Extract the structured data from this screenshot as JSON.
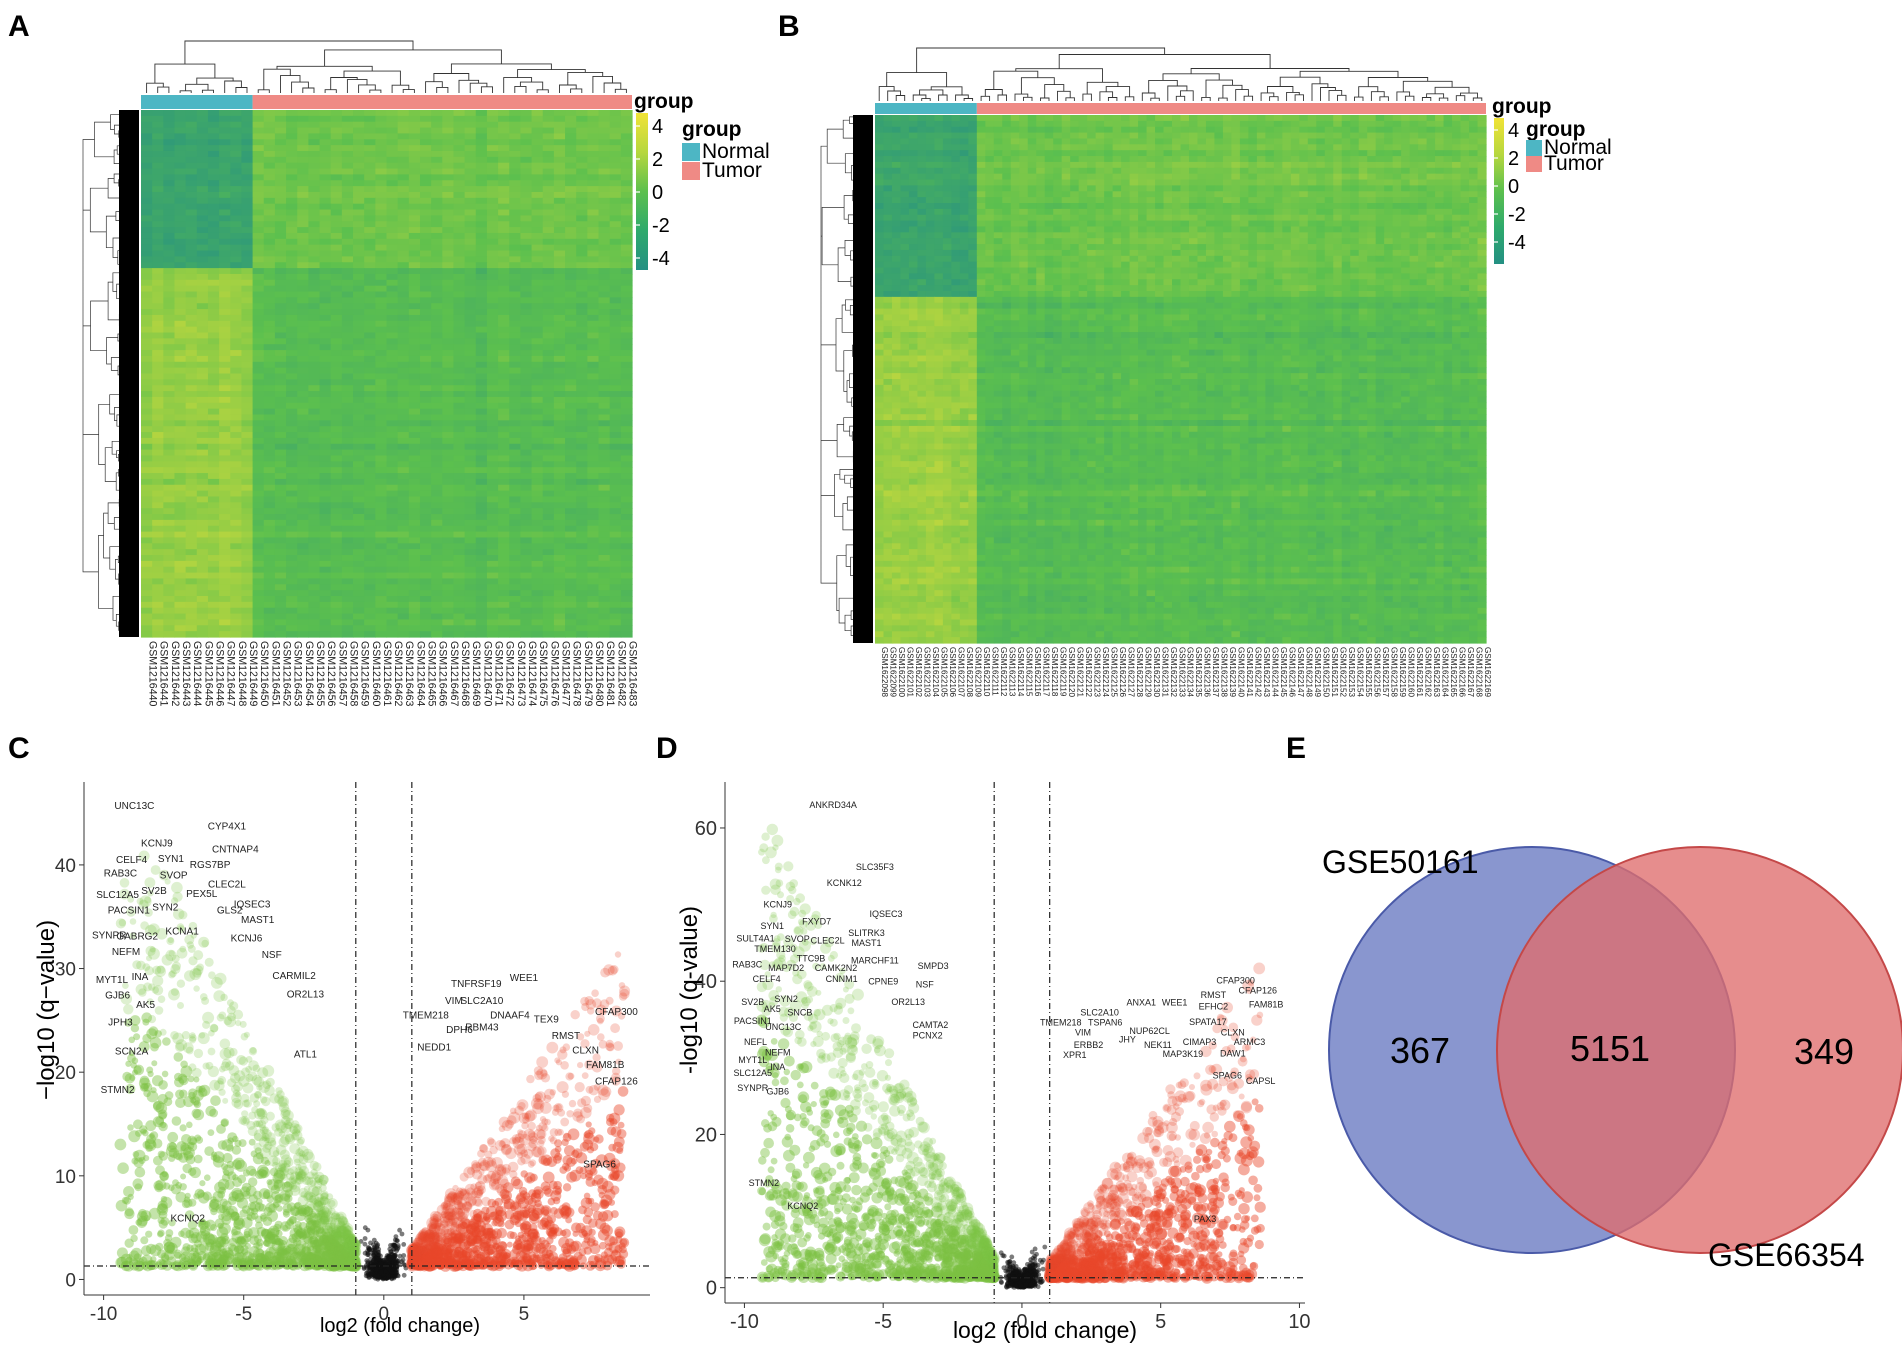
{
  "panel_labels": {
    "a": "A",
    "b": "B",
    "c": "C",
    "d": "D",
    "e": "E"
  },
  "colors": {
    "normal": "#4db6c4",
    "tumor": "#ef8a85",
    "heat_low": "#279584",
    "heat_mid": "#5cc04e",
    "heat_high": "#f1e336",
    "down": "#7cc242",
    "up": "#e8462a",
    "ns": "#111111",
    "venn_left": "#6f7fc4",
    "venn_right": "#df6d6d",
    "venn_overlap": "#a74c6c"
  },
  "chart_data": [
    {
      "panel": "A",
      "type": "heatmap",
      "legend": {
        "title": "group",
        "entries": [
          {
            "name": "Normal"
          },
          {
            "name": "Tumor"
          }
        ]
      },
      "annotation_label": "group",
      "colorbar": {
        "ticks": [
          "4",
          "2",
          "0",
          "-2",
          "-4"
        ],
        "range": [
          -4,
          4
        ]
      },
      "n_normal_samples": 10,
      "n_tumor_samples": 34,
      "samples": [
        "GSM1216440",
        "GSM1216441",
        "GSM1216442",
        "GSM1216443",
        "GSM1216444",
        "GSM1216445",
        "GSM1216446",
        "GSM1216447",
        "GSM1216448",
        "GSM1216449",
        "GSM1216450",
        "GSM1216451",
        "GSM1216452",
        "GSM1216453",
        "GSM1216454",
        "GSM1216455",
        "GSM1216456",
        "GSM1216457",
        "GSM1216458",
        "GSM1216459",
        "GSM1216460",
        "GSM1216461",
        "GSM1216462",
        "GSM1216463",
        "GSM1216464",
        "GSM1216465",
        "GSM1216466",
        "GSM1216467",
        "GSM1216468",
        "GSM1216469",
        "GSM1216470",
        "GSM1216471",
        "GSM1216472",
        "GSM1216473",
        "GSM1216474",
        "GSM1216475",
        "GSM1216476",
        "GSM1216477",
        "GSM1216478",
        "GSM1216479",
        "GSM1216480",
        "GSM1216481",
        "GSM1216482",
        "GSM1216483"
      ]
    },
    {
      "panel": "B",
      "type": "heatmap",
      "legend": {
        "title": "group",
        "entries": [
          {
            "name": "Normal"
          },
          {
            "name": "Tumor"
          }
        ]
      },
      "annotation_label": "group",
      "colorbar": {
        "ticks": [
          "4",
          "2",
          "0",
          "-2",
          "-4"
        ],
        "range": [
          -4,
          4
        ]
      },
      "n_normal_samples": 12,
      "n_tumor_samples": 60,
      "samples": [
        "GSM1622098",
        "GSM1622099",
        "GSM1622100",
        "GSM1622101",
        "GSM1622102",
        "GSM1622103",
        "GSM1622104",
        "GSM1622105",
        "GSM1622106",
        "GSM1622107",
        "GSM1622108",
        "GSM1622109",
        "GSM1622110",
        "GSM1622111",
        "GSM1622112",
        "GSM1622113",
        "GSM1622114",
        "GSM1622115",
        "GSM1622116",
        "GSM1622117",
        "GSM1622118",
        "GSM1622119",
        "GSM1622120",
        "GSM1622121",
        "GSM1622122",
        "GSM1622123",
        "GSM1622124",
        "GSM1622125",
        "GSM1622126",
        "GSM1622127",
        "GSM1622128",
        "GSM1622129",
        "GSM1622130",
        "GSM1622131",
        "GSM1622132",
        "GSM1622133",
        "GSM1622134",
        "GSM1622135",
        "GSM1622136",
        "GSM1622137",
        "GSM1622138",
        "GSM1622139",
        "GSM1622140",
        "GSM1622141",
        "GSM1622142",
        "GSM1622143",
        "GSM1622144",
        "GSM1622145",
        "GSM1622146",
        "GSM1622147",
        "GSM1622148",
        "GSM1622149",
        "GSM1622150",
        "GSM1622151",
        "GSM1622152",
        "GSM1622153",
        "GSM1622154",
        "GSM1622155",
        "GSM1622156",
        "GSM1622157",
        "GSM1622158",
        "GSM1622159",
        "GSM1622160",
        "GSM1622161",
        "GSM1622162",
        "GSM1622163",
        "GSM1622164",
        "GSM1622165",
        "GSM1622166",
        "GSM1622167",
        "GSM1622168",
        "GSM1622169"
      ]
    },
    {
      "panel": "C",
      "type": "scatter",
      "xlabel": "log2 (fold change)",
      "ylabel": "−log10 (q−value)",
      "xlim": [
        -10.7,
        9.5
      ],
      "ylim": [
        -1.5,
        48
      ],
      "xticks": [
        -10,
        -5,
        0,
        5
      ],
      "yticks": [
        0,
        10,
        20,
        30,
        40
      ],
      "thresholds": {
        "log2fc": [
          -1,
          1
        ],
        "q": 1.3
      },
      "labels": [
        {
          "text": "UNC13C",
          "x": -8.9,
          "y": 45.4
        },
        {
          "text": "CYP4X1",
          "x": -5.6,
          "y": 43.4
        },
        {
          "text": "KCNJ9",
          "x": -8.1,
          "y": 41.8
        },
        {
          "text": "CNTNAP4",
          "x": -5.3,
          "y": 41.2
        },
        {
          "text": "CELF4",
          "x": -9.0,
          "y": 40.2
        },
        {
          "text": "SYN1",
          "x": -7.6,
          "y": 40.3
        },
        {
          "text": "RGS7BP",
          "x": -6.2,
          "y": 39.7
        },
        {
          "text": "RAB3C",
          "x": -9.4,
          "y": 38.9
        },
        {
          "text": "SVOP",
          "x": -7.5,
          "y": 38.7
        },
        {
          "text": "SV2B",
          "x": -8.2,
          "y": 37.2
        },
        {
          "text": "CLEC2L",
          "x": -5.6,
          "y": 37.8
        },
        {
          "text": "SLC12A5",
          "x": -9.5,
          "y": 36.8
        },
        {
          "text": "PEX5L",
          "x": -6.5,
          "y": 36.9
        },
        {
          "text": "IQSEC3",
          "x": -4.7,
          "y": 35.9
        },
        {
          "text": "PACSIN1",
          "x": -9.1,
          "y": 35.3
        },
        {
          "text": "SYN2",
          "x": -7.8,
          "y": 35.6
        },
        {
          "text": "GLS2",
          "x": -5.5,
          "y": 35.3
        },
        {
          "text": "MAST1",
          "x": -4.5,
          "y": 34.4
        },
        {
          "text": "SYNPR",
          "x": -9.8,
          "y": 32.9
        },
        {
          "text": "GABRG2",
          "x": -8.8,
          "y": 32.8
        },
        {
          "text": "KCNA1",
          "x": -7.2,
          "y": 33.3
        },
        {
          "text": "KCNJ6",
          "x": -4.9,
          "y": 32.6
        },
        {
          "text": "NEFM",
          "x": -9.2,
          "y": 31.3
        },
        {
          "text": "NSF",
          "x": -4.0,
          "y": 31.0
        },
        {
          "text": "MYT1L",
          "x": -9.7,
          "y": 28.6
        },
        {
          "text": "INA",
          "x": -8.7,
          "y": 28.9
        },
        {
          "text": "CARMIL2",
          "x": -3.2,
          "y": 29.0
        },
        {
          "text": "GJB6",
          "x": -9.5,
          "y": 27.1
        },
        {
          "text": "OR2L13",
          "x": -2.8,
          "y": 27.2
        },
        {
          "text": "AK5",
          "x": -8.5,
          "y": 26.2
        },
        {
          "text": "JPH3",
          "x": -9.4,
          "y": 24.5
        },
        {
          "text": "SCN2A",
          "x": -9.0,
          "y": 21.7
        },
        {
          "text": "STMN2",
          "x": -9.5,
          "y": 18.0
        },
        {
          "text": "ATL1",
          "x": -2.8,
          "y": 21.4
        },
        {
          "text": "KCNQ2",
          "x": -7.0,
          "y": 5.6
        },
        {
          "text": "TNFRSF19",
          "x": 3.3,
          "y": 28.2
        },
        {
          "text": "WEE1",
          "x": 5.0,
          "y": 28.8
        },
        {
          "text": "CFAP300",
          "x": 8.3,
          "y": 25.5
        },
        {
          "text": "VIM",
          "x": 2.5,
          "y": 26.6
        },
        {
          "text": "SLC2A10",
          "x": 3.5,
          "y": 26.6
        },
        {
          "text": "TMEM218",
          "x": 1.5,
          "y": 25.2
        },
        {
          "text": "DNAAF4",
          "x": 4.5,
          "y": 25.2
        },
        {
          "text": "TEX9",
          "x": 5.8,
          "y": 24.8
        },
        {
          "text": "DPH6",
          "x": 2.7,
          "y": 23.8
        },
        {
          "text": "RBM43",
          "x": 3.5,
          "y": 24.0
        },
        {
          "text": "RMST",
          "x": 6.5,
          "y": 23.2
        },
        {
          "text": "NEDD1",
          "x": 1.8,
          "y": 22.1
        },
        {
          "text": "CLXN",
          "x": 7.2,
          "y": 21.8
        },
        {
          "text": "FAM81B",
          "x": 7.9,
          "y": 20.4
        },
        {
          "text": "CFAP126",
          "x": 8.3,
          "y": 18.8
        },
        {
          "text": "SPAG6",
          "x": 7.7,
          "y": 10.8
        }
      ]
    },
    {
      "panel": "D",
      "type": "scatter",
      "xlabel": "log2 (fold change)",
      "ylabel": "-log10 (q-value)",
      "xlim": [
        -10.7,
        10.2
      ],
      "ylim": [
        -2,
        66
      ],
      "xticks": [
        -10,
        -5,
        0,
        5,
        10
      ],
      "yticks": [
        0,
        20,
        40,
        60
      ],
      "thresholds": {
        "log2fc": [
          -1,
          1
        ],
        "q": 1.3
      },
      "labels": [
        {
          "text": "ANKRD34A",
          "x": -6.8,
          "y": 62.6
        },
        {
          "text": "SLC35F3",
          "x": -5.3,
          "y": 54.5
        },
        {
          "text": "KCNK12",
          "x": -6.4,
          "y": 52.4
        },
        {
          "text": "KCNJ9",
          "x": -8.8,
          "y": 49.6
        },
        {
          "text": "IQSEC3",
          "x": -4.9,
          "y": 48.4
        },
        {
          "text": "FXYD7",
          "x": -7.4,
          "y": 47.4
        },
        {
          "text": "SYN1",
          "x": -9.0,
          "y": 46.8
        },
        {
          "text": "SLITRK3",
          "x": -5.6,
          "y": 45.9
        },
        {
          "text": "SULT4A1",
          "x": -9.6,
          "y": 45.2
        },
        {
          "text": "SVOP",
          "x": -8.1,
          "y": 45.1
        },
        {
          "text": "CLEC2L",
          "x": -7.0,
          "y": 44.9
        },
        {
          "text": "MAST1",
          "x": -5.6,
          "y": 44.6
        },
        {
          "text": "TMEM130",
          "x": -8.9,
          "y": 43.8
        },
        {
          "text": "TTC9B",
          "x": -7.6,
          "y": 42.6
        },
        {
          "text": "MARCHF11",
          "x": -5.3,
          "y": 42.3
        },
        {
          "text": "RAB3C",
          "x": -9.9,
          "y": 41.8
        },
        {
          "text": "MAP7D2",
          "x": -8.5,
          "y": 41.3
        },
        {
          "text": "CAMK2N2",
          "x": -6.7,
          "y": 41.3
        },
        {
          "text": "SMPD3",
          "x": -3.2,
          "y": 41.6
        },
        {
          "text": "CELF4",
          "x": -9.2,
          "y": 39.9
        },
        {
          "text": "CNNM1",
          "x": -6.5,
          "y": 39.9
        },
        {
          "text": "CPNE9",
          "x": -5.0,
          "y": 39.6
        },
        {
          "text": "NSF",
          "x": -3.5,
          "y": 39.2
        },
        {
          "text": "SYN2",
          "x": -8.5,
          "y": 37.3
        },
        {
          "text": "SV2B",
          "x": -9.7,
          "y": 36.9
        },
        {
          "text": "OR2L13",
          "x": -4.1,
          "y": 36.9
        },
        {
          "text": "AK5",
          "x": -9.0,
          "y": 36.0
        },
        {
          "text": "SNCB",
          "x": -8.0,
          "y": 35.5
        },
        {
          "text": "PACSIN1",
          "x": -9.7,
          "y": 34.4
        },
        {
          "text": "UNC13C",
          "x": -8.6,
          "y": 33.6
        },
        {
          "text": "CAMTA2",
          "x": -3.3,
          "y": 33.9
        },
        {
          "text": "PCNX2",
          "x": -3.4,
          "y": 32.5
        },
        {
          "text": "NEFL",
          "x": -9.6,
          "y": 31.7
        },
        {
          "text": "NEFM",
          "x": -8.8,
          "y": 30.3
        },
        {
          "text": "MYT1L",
          "x": -9.7,
          "y": 29.3
        },
        {
          "text": "INA",
          "x": -8.8,
          "y": 28.4
        },
        {
          "text": "SLC12A5",
          "x": -9.7,
          "y": 27.6
        },
        {
          "text": "SYNPR",
          "x": -9.7,
          "y": 25.7
        },
        {
          "text": "GJB6",
          "x": -8.8,
          "y": 25.2
        },
        {
          "text": "STMN2",
          "x": -9.3,
          "y": 13.3
        },
        {
          "text": "KCNQ2",
          "x": -7.9,
          "y": 10.3
        },
        {
          "text": "CFAP300",
          "x": 7.7,
          "y": 39.7
        },
        {
          "text": "CFAP126",
          "x": 8.5,
          "y": 38.4
        },
        {
          "text": "FAM81B",
          "x": 8.8,
          "y": 36.6
        },
        {
          "text": "RMST",
          "x": 6.9,
          "y": 37.8
        },
        {
          "text": "ANXA1",
          "x": 4.3,
          "y": 36.8
        },
        {
          "text": "WEE1",
          "x": 5.5,
          "y": 36.8
        },
        {
          "text": "EFHC2",
          "x": 6.9,
          "y": 36.3
        },
        {
          "text": "SLC2A10",
          "x": 2.8,
          "y": 35.5
        },
        {
          "text": "TMEM218",
          "x": 1.4,
          "y": 34.2
        },
        {
          "text": "TSPAN6",
          "x": 3.0,
          "y": 34.2
        },
        {
          "text": "SPATA17",
          "x": 6.7,
          "y": 34.3
        },
        {
          "text": "NUP62CL",
          "x": 4.6,
          "y": 33.1
        },
        {
          "text": "CLXN",
          "x": 7.6,
          "y": 32.9
        },
        {
          "text": "VIM",
          "x": 2.2,
          "y": 32.9
        },
        {
          "text": "JHY",
          "x": 3.8,
          "y": 32.0
        },
        {
          "text": "ARMC3",
          "x": 8.2,
          "y": 31.7
        },
        {
          "text": "ERBB2",
          "x": 2.4,
          "y": 31.3
        },
        {
          "text": "NEK11",
          "x": 4.9,
          "y": 31.3
        },
        {
          "text": "CIMAP3",
          "x": 6.4,
          "y": 31.7
        },
        {
          "text": "XPR1",
          "x": 1.9,
          "y": 30.0
        },
        {
          "text": "MAP3K19",
          "x": 5.8,
          "y": 30.1
        },
        {
          "text": "DAW1",
          "x": 7.6,
          "y": 30.2
        },
        {
          "text": "SPAG6",
          "x": 7.4,
          "y": 27.3
        },
        {
          "text": "CAPSL",
          "x": 8.6,
          "y": 26.6
        },
        {
          "text": "PAX3",
          "x": 6.6,
          "y": 8.6
        }
      ]
    },
    {
      "panel": "E",
      "type": "venn",
      "sets": [
        {
          "name": "GSE50161",
          "only": 367
        },
        {
          "name": "GSE66354",
          "only": 349
        }
      ],
      "overlap": 5151
    }
  ]
}
